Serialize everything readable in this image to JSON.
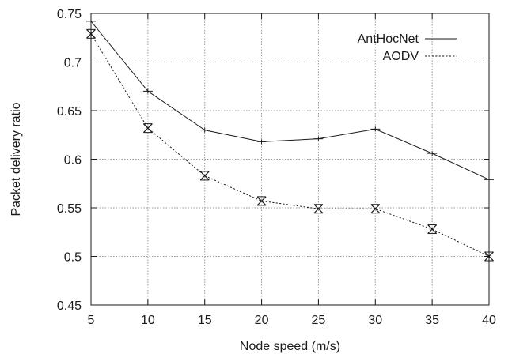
{
  "chart_data": {
    "type": "line",
    "title": "",
    "xlabel": "Node speed (m/s)",
    "ylabel": "Packet delivery ratio",
    "xlim": [
      5,
      40
    ],
    "ylim": [
      0.45,
      0.75
    ],
    "xticks": [
      5,
      10,
      15,
      20,
      25,
      30,
      35,
      40
    ],
    "yticks": [
      0.45,
      0.5,
      0.55,
      0.6,
      0.65,
      0.7,
      0.75
    ],
    "ytick_labels": [
      "0.45",
      "0.5",
      "0.55",
      "0.6",
      "0.65",
      "0.7",
      "0.75"
    ],
    "grid": true,
    "legend_position": "top-right",
    "x": [
      5,
      10,
      15,
      20,
      25,
      30,
      35,
      40
    ],
    "series": [
      {
        "name": "AntHocNet",
        "line_style": "solid",
        "marker": "plus",
        "values": [
          0.742,
          0.67,
          0.63,
          0.618,
          0.621,
          0.631,
          0.606,
          0.579
        ]
      },
      {
        "name": "AODV",
        "line_style": "dotted",
        "marker": "cross",
        "values": [
          0.729,
          0.632,
          0.583,
          0.557,
          0.549,
          0.549,
          0.528,
          0.5
        ]
      }
    ]
  }
}
